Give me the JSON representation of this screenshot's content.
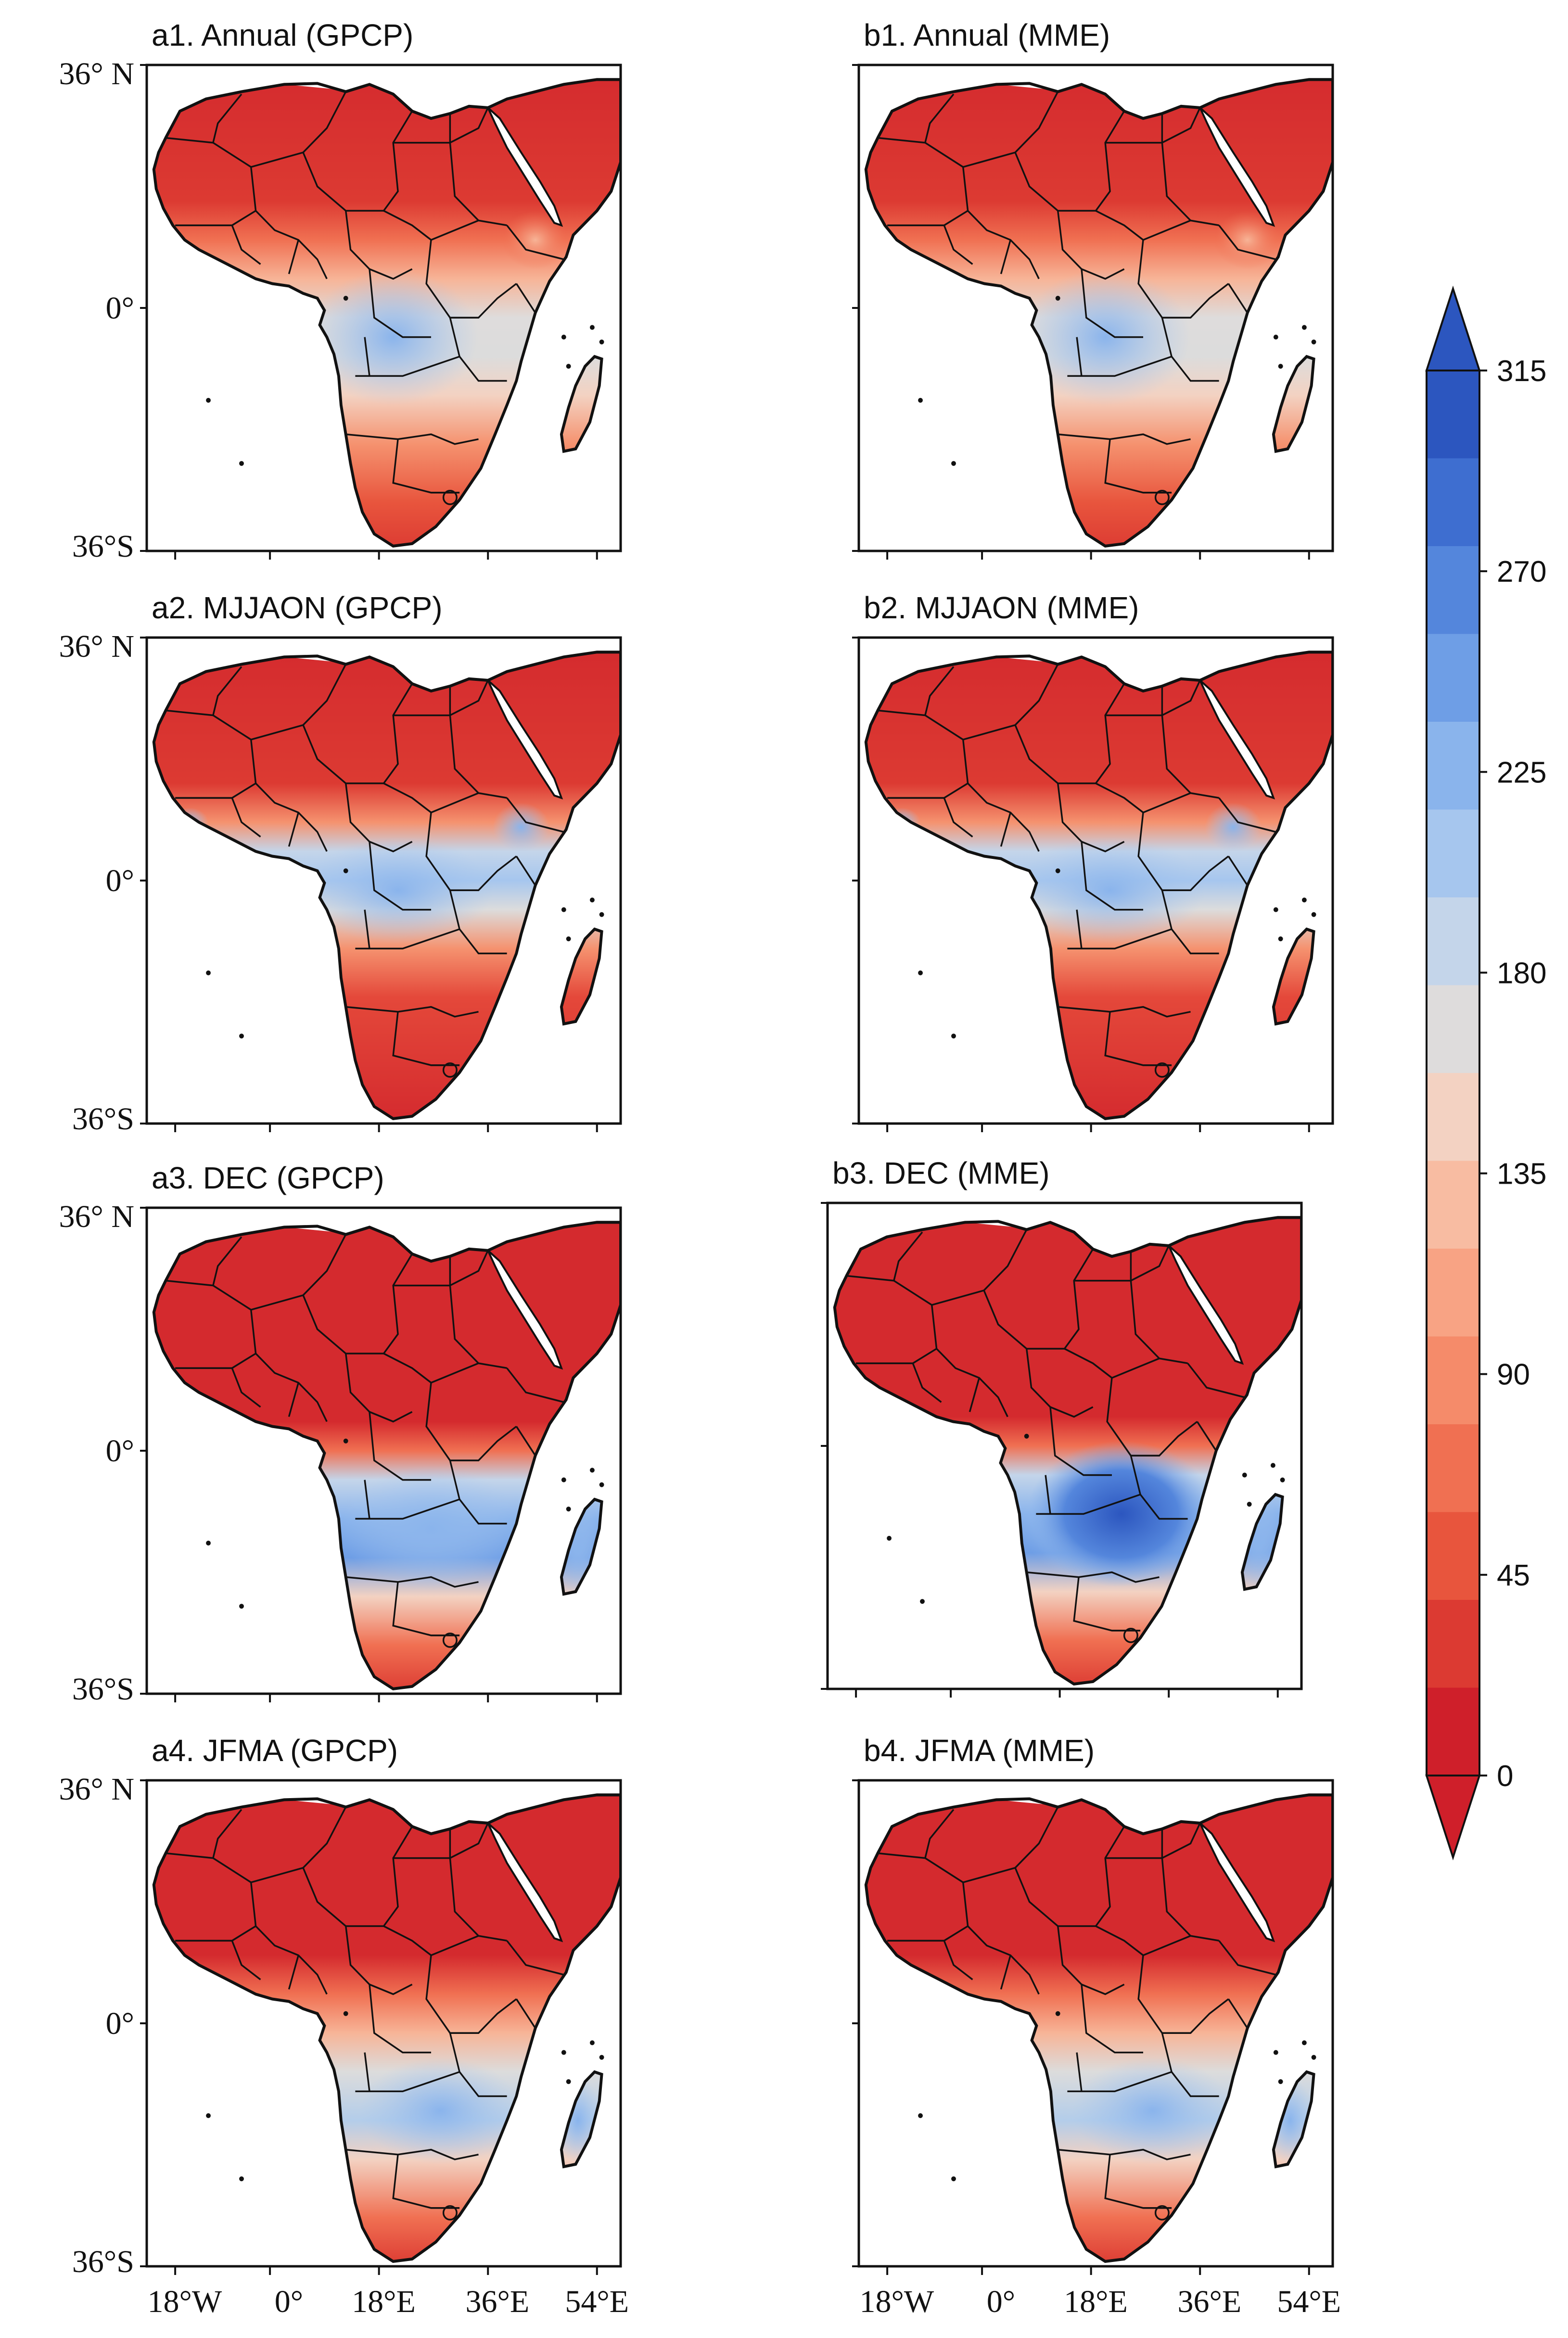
{
  "figure": {
    "panels": [
      {
        "id": "a1",
        "title": "a1. Annual (GPCP)",
        "season": "annual",
        "src": "GPCP",
        "lat_labels": [
          "36° N",
          "0°",
          "36°S"
        ]
      },
      {
        "id": "b1",
        "title": "b1. Annual (MME)",
        "season": "annual",
        "src": "MME",
        "lat_labels": []
      },
      {
        "id": "a2",
        "title": "a2. MJJAON (GPCP)",
        "season": "mjjaon",
        "src": "GPCP",
        "lat_labels": [
          "36° N",
          "0°",
          "36°S"
        ]
      },
      {
        "id": "b2",
        "title": "b2.  MJJAON (MME)",
        "season": "mjjaon",
        "src": "MME",
        "lat_labels": []
      },
      {
        "id": "a3",
        "title": "a3. DEC (GPCP)",
        "season": "dec",
        "src": "GPCP",
        "lat_labels": [
          "36° N",
          "0°",
          "36°S"
        ]
      },
      {
        "id": "b3",
        "title": "b3. DEC (MME)",
        "season": "dec",
        "src": "MME",
        "lat_labels": []
      },
      {
        "id": "a4",
        "title": "a4. JFMA (GPCP)",
        "season": "jfma",
        "src": "GPCP",
        "lat_labels": [
          "36° N",
          "0°",
          "36°S"
        ]
      },
      {
        "id": "b4",
        "title": "b4. JFMA (MME)",
        "season": "jfma",
        "src": "MME",
        "lat_labels": []
      }
    ],
    "lon_labels": [
      "18°W",
      "0°",
      "18°E",
      "36°E",
      "54°E"
    ],
    "colorbar": {
      "ticks": [
        "0",
        "45",
        "90",
        "135",
        "180",
        "225",
        "270",
        "315"
      ],
      "min": 0,
      "max": 315,
      "extend": "both",
      "colors": [
        "#cf1f2a",
        "#dc3a32",
        "#e8553d",
        "#f07052",
        "#f58b6a",
        "#f8a384",
        "#f8bca2",
        "#f3d2c2",
        "#dedcdc",
        "#c4d5ea",
        "#a6c6ee",
        "#8ab4ec",
        "#6e9ee6",
        "#5486dc",
        "#3e6ed0",
        "#2c56bf"
      ]
    },
    "colors": {
      "deep_red": "#d42a2e",
      "red": "#e4483a",
      "orange_red": "#ef6a4e",
      "salmon": "#f5926f",
      "light_salmon": "#f7b497",
      "pale": "#f0d3c4",
      "neutral": "#dcdcdc",
      "light_blue": "#b3cdea",
      "blue": "#7ea8e6",
      "deep_blue": "#3f6fd2"
    }
  }
}
